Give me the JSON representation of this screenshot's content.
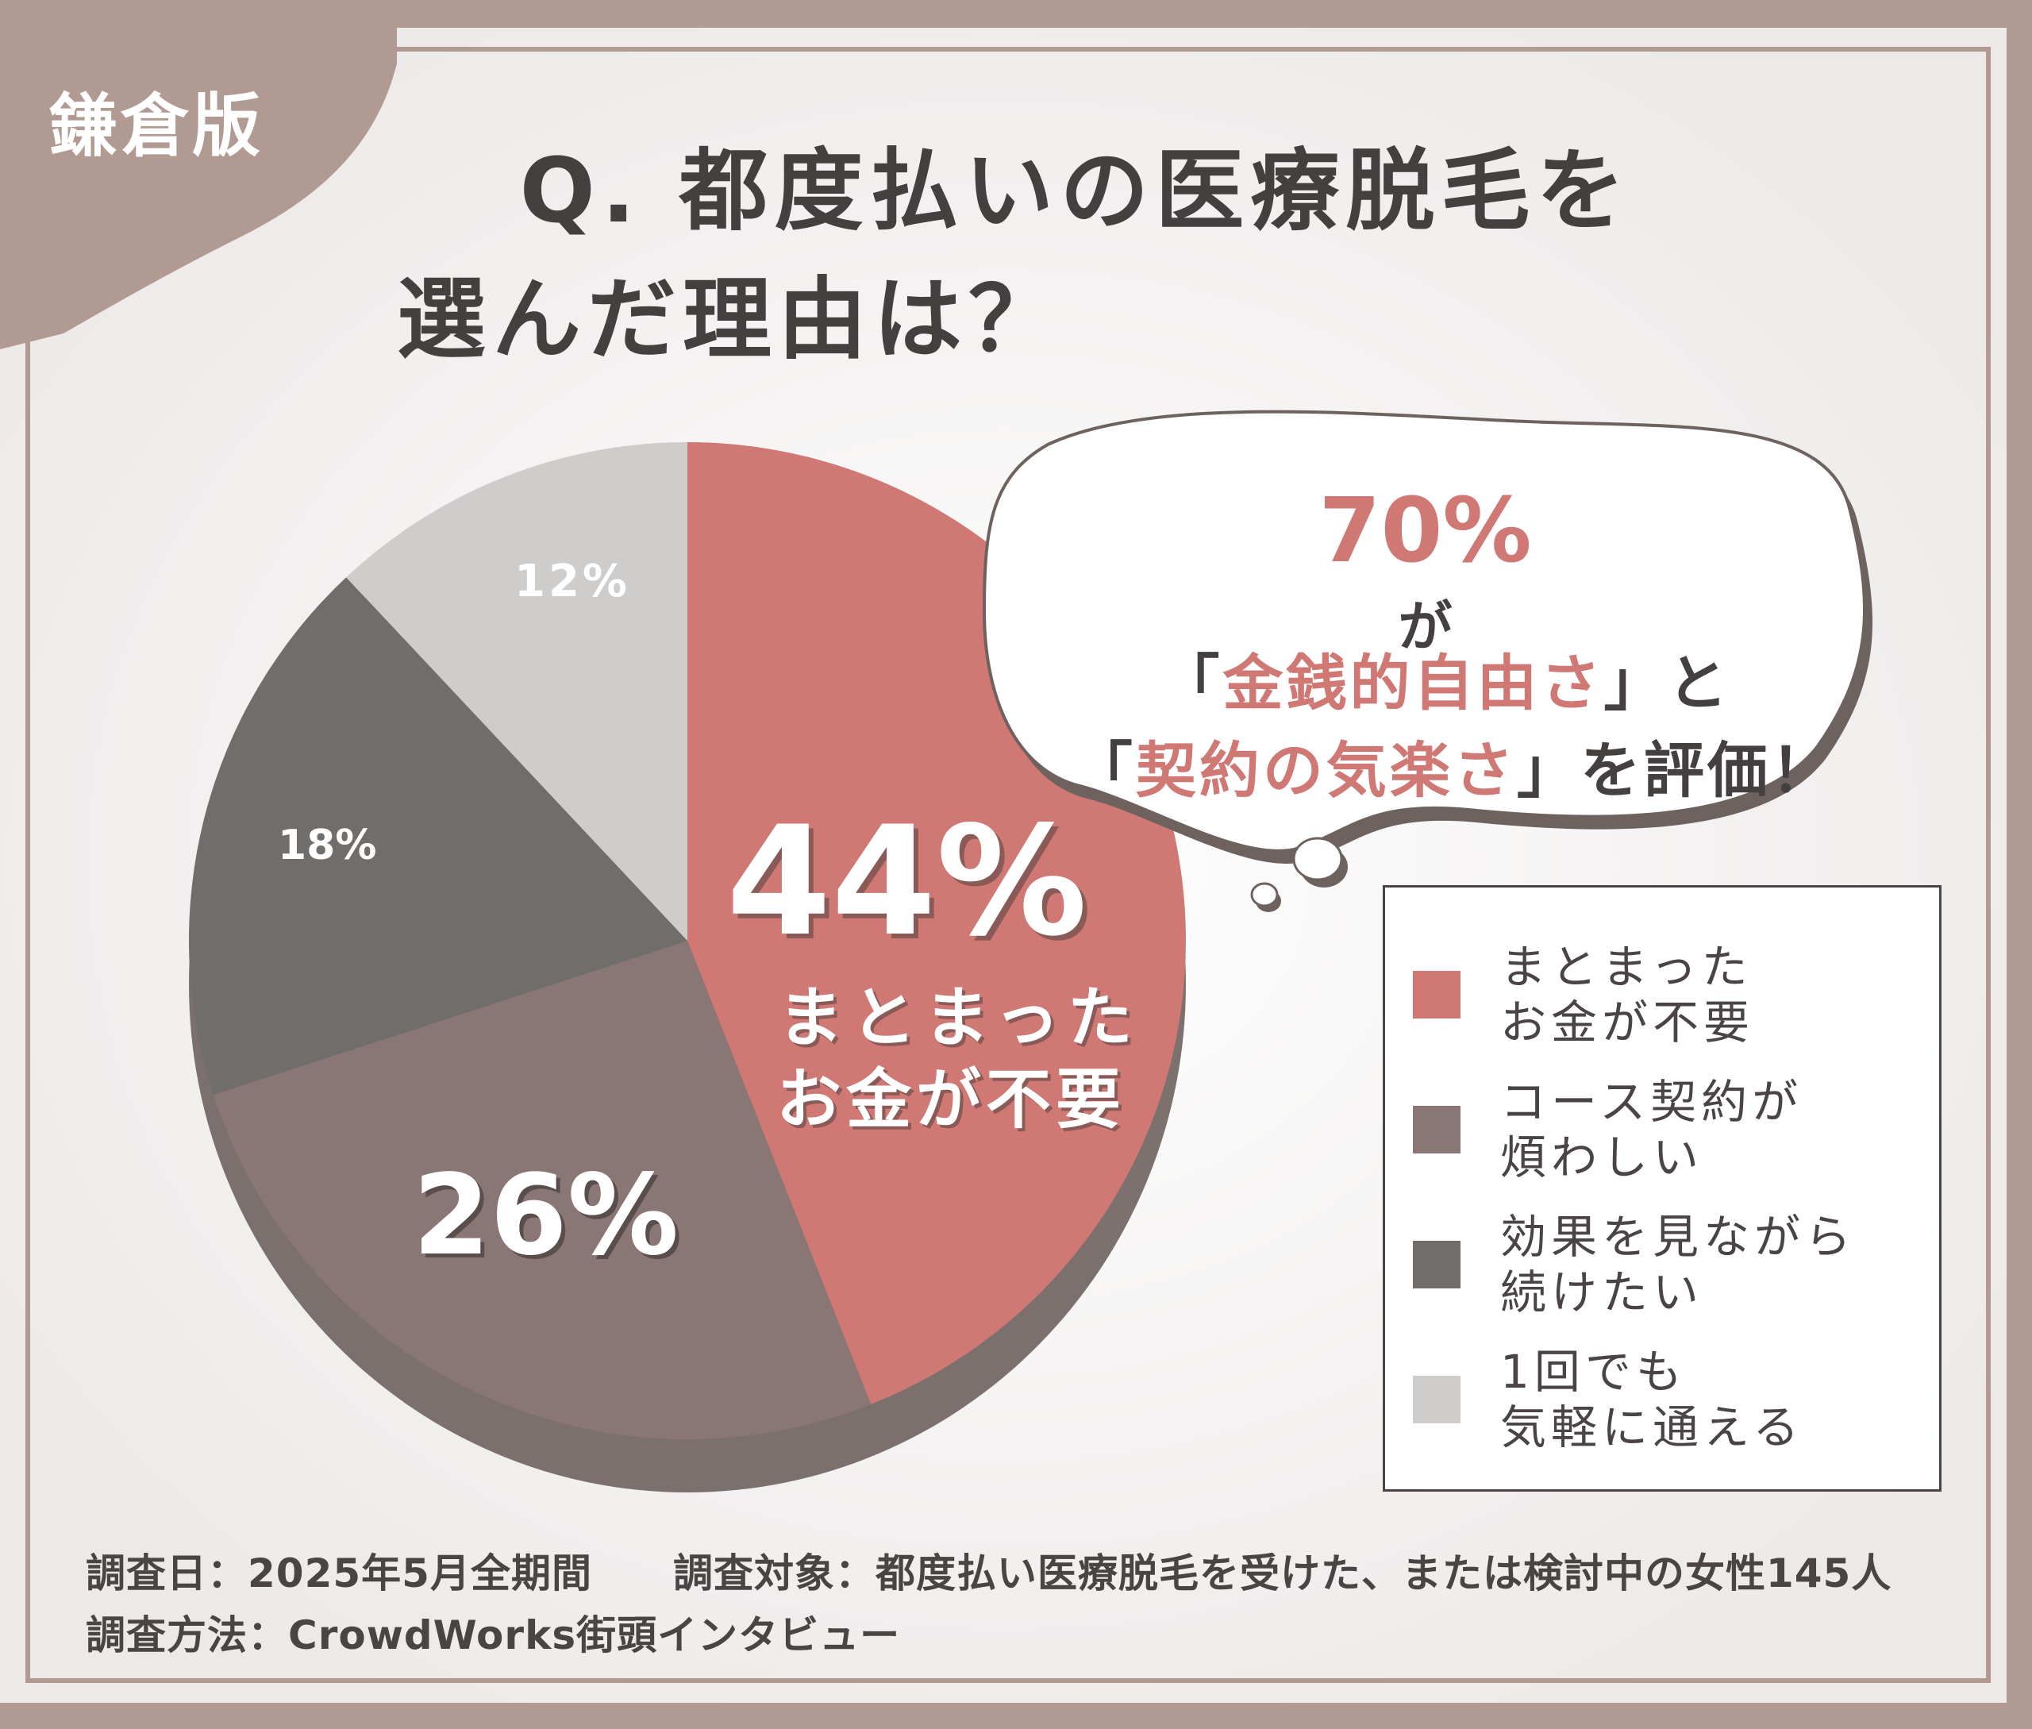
{
  "badge": "鎌倉版",
  "title_line1": "Q. 都度払いの医療脱毛を",
  "title_line2": "選んだ理由は？",
  "callout": {
    "percent": "70%",
    "suffix1": "が",
    "line2_open": "「",
    "line2_highlight": "金銭的自由さ",
    "line2_close": "」と",
    "line3_open": "「",
    "line3_highlight": "契約の気楽さ",
    "line3_close": "」を評価！"
  },
  "colors": {
    "accent": "#cf7874",
    "slice2": "#8a7674",
    "slice3": "#716d6b",
    "slice4": "#cfcdcc",
    "frame": "#b19a92",
    "text": "#4a4444"
  },
  "chart_data": {
    "type": "pie",
    "categories": [
      "まとまったお金が不要",
      "コース契約が煩わしい",
      "効果を見ながら続けたい",
      "1回でも気軽に通える"
    ],
    "values": [
      44,
      26,
      18,
      12
    ],
    "value_labels": [
      "44%",
      "26%",
      "18%",
      "12%"
    ],
    "slice_caption_44": [
      "まとまった",
      "お金が不要"
    ],
    "legend_placement": "right",
    "legend": [
      [
        "まとまった",
        "お金が不要"
      ],
      [
        "コース契約が",
        "煩わしい"
      ],
      [
        "効果を見ながら",
        "続けたい"
      ],
      [
        "1回でも",
        "気軽に通える"
      ]
    ],
    "colors": [
      "#cf7874",
      "#8a7674",
      "#716d6b",
      "#cfcdcc"
    ]
  },
  "footer": {
    "line1": "調査日：2025年5月全期間　　調査対象：都度払い医療脱毛を受けた、または検討中の女性145人",
    "line2": "調査方法：CrowdWorks街頭インタビュー"
  }
}
